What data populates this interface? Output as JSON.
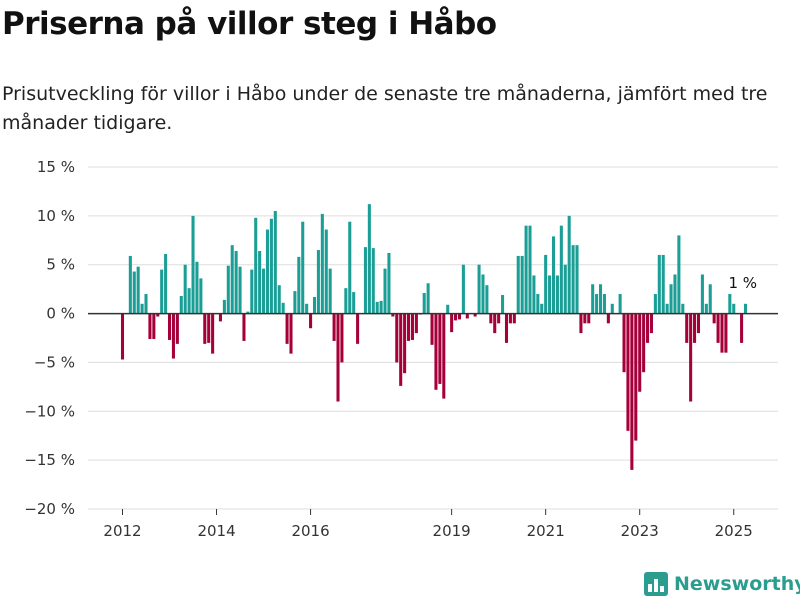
{
  "header": {
    "title": "Priserna på villor steg i Håbo",
    "subtitle": "Prisutveckling för villor i Håbo under de senaste tre månaderna, jämfört med tre månader tidigare."
  },
  "brand": {
    "name": "Newsworthy"
  },
  "colors": {
    "positive": "#1a9e95",
    "negative": "#a50039",
    "grid": "#dddddd",
    "zero_line": "#333333"
  },
  "chart_data": {
    "type": "bar",
    "title": "Priserna på villor steg i Håbo",
    "subtitle": "Prisutveckling för villor i Håbo under de senaste tre månaderna, jämfört med tre månader tidigare.",
    "unit": "%",
    "ylim": [
      -20,
      15
    ],
    "yticks": [
      15,
      10,
      5,
      0,
      -5,
      -10,
      -15,
      -20
    ],
    "ytick_labels": [
      "15 %",
      "10 %",
      "5 %",
      "0 %",
      "−5 %",
      "−10 %",
      "−15 %",
      "−20 %"
    ],
    "xticks": [
      "2012",
      "2014",
      "2016",
      "2019",
      "2021",
      "2023",
      "2025"
    ],
    "grid": true,
    "annotation": "1 %",
    "categories": [
      "2012-01",
      "2012-02",
      "2012-03",
      "2012-04",
      "2012-05",
      "2012-06",
      "2012-07",
      "2012-08",
      "2012-09",
      "2012-10",
      "2012-11",
      "2012-12",
      "2013-01",
      "2013-02",
      "2013-03",
      "2013-04",
      "2013-05",
      "2013-06",
      "2013-07",
      "2013-08",
      "2013-09",
      "2013-10",
      "2013-11",
      "2013-12",
      "2014-01",
      "2014-02",
      "2014-03",
      "2014-04",
      "2014-05",
      "2014-06",
      "2014-07",
      "2014-08",
      "2014-09",
      "2014-10",
      "2014-11",
      "2014-12",
      "2015-01",
      "2015-02",
      "2015-03",
      "2015-04",
      "2015-05",
      "2015-06",
      "2015-07",
      "2015-08",
      "2015-09",
      "2015-10",
      "2015-11",
      "2015-12",
      "2016-01",
      "2016-02",
      "2016-03",
      "2016-04",
      "2016-05",
      "2016-06",
      "2016-07",
      "2016-08",
      "2016-09",
      "2016-10",
      "2016-11",
      "2016-12",
      "2017-01",
      "2017-02",
      "2017-03",
      "2017-04",
      "2017-05",
      "2017-06",
      "2017-07",
      "2017-08",
      "2017-09",
      "2017-10",
      "2017-11",
      "2017-12",
      "2018-01",
      "2018-02",
      "2018-03",
      "2018-04",
      "2018-05",
      "2018-06",
      "2018-07",
      "2018-08",
      "2018-09",
      "2018-10",
      "2018-11",
      "2018-12",
      "2019-01",
      "2019-02",
      "2019-03",
      "2019-04",
      "2019-05",
      "2019-06",
      "2019-07",
      "2019-08",
      "2019-09",
      "2019-10",
      "2019-11",
      "2019-12",
      "2020-01",
      "2020-02",
      "2020-03",
      "2020-04",
      "2020-05",
      "2020-06",
      "2020-07",
      "2020-08",
      "2020-09",
      "2020-10",
      "2020-11",
      "2020-12",
      "2021-01",
      "2021-02",
      "2021-03",
      "2021-04",
      "2021-05",
      "2021-06",
      "2021-07",
      "2021-08",
      "2021-09",
      "2021-10",
      "2021-11",
      "2021-12",
      "2022-01",
      "2022-02",
      "2022-03",
      "2022-04",
      "2022-05",
      "2022-06",
      "2022-07",
      "2022-08",
      "2022-09",
      "2022-10",
      "2022-11",
      "2022-12",
      "2023-01",
      "2023-02",
      "2023-03",
      "2023-04",
      "2023-05",
      "2023-06",
      "2023-07",
      "2023-08",
      "2023-09",
      "2023-10",
      "2023-11",
      "2023-12",
      "2024-01",
      "2024-02",
      "2024-03",
      "2024-04",
      "2024-05",
      "2024-06",
      "2024-07",
      "2024-08",
      "2024-09",
      "2024-10",
      "2024-11",
      "2024-12",
      "2025-01",
      "2025-02",
      "2025-03",
      "2025-04"
    ],
    "values": [
      -4.7,
      0,
      5.9,
      4.3,
      4.8,
      1.0,
      2.0,
      -2.6,
      -2.6,
      -0.3,
      4.5,
      6.1,
      -2.7,
      -4.6,
      -3.1,
      1.8,
      5.0,
      2.6,
      10.0,
      5.3,
      3.6,
      -3.1,
      -3.0,
      -4.1,
      0,
      -0.8,
      1.4,
      4.9,
      7.0,
      6.4,
      4.8,
      -2.8,
      0.2,
      4.5,
      9.8,
      6.4,
      4.6,
      8.6,
      9.7,
      10.5,
      2.9,
      1.1,
      -3.1,
      -4.1,
      2.3,
      5.8,
      9.4,
      1.0,
      -1.5,
      1.7,
      6.5,
      10.2,
      8.6,
      4.6,
      -2.8,
      -9.0,
      -5.0,
      2.6,
      9.4,
      2.2,
      -3.1,
      0,
      6.8,
      11.2,
      6.7,
      1.2,
      1.3,
      4.6,
      6.2,
      -0.3,
      -5.0,
      -7.4,
      -6.1,
      -2.8,
      -2.7,
      -2.0,
      -0.1,
      2.1,
      3.1,
      -3.2,
      -7.8,
      -7.2,
      -8.7,
      0.9,
      -1.9,
      -0.7,
      -0.6,
      5.0,
      -0.5,
      0,
      -0.3,
      5.0,
      4.0,
      2.9,
      -1.0,
      -2.0,
      -1.0,
      1.9,
      -3.0,
      -1.0,
      -1.0,
      5.9,
      5.9,
      9.0,
      9.0,
      3.9,
      2.0,
      1.0,
      6.0,
      3.9,
      7.9,
      3.9,
      9.0,
      5.0,
      10.0,
      7.0,
      7.0,
      -2.0,
      -1.0,
      -1.0,
      3.0,
      2.0,
      3.0,
      2.0,
      -1.0,
      1.0,
      0,
      2.0,
      -6.0,
      -12.0,
      -16.0,
      -13.0,
      -8.0,
      -6.0,
      -3.0,
      -2.0,
      2.0,
      6.0,
      6.0,
      1.0,
      3.0,
      4.0,
      8.0,
      1.0,
      -3.0,
      -9.0,
      -3.0,
      -2.0,
      4.0,
      1.0,
      3.0,
      -1.0,
      -3.0,
      -4.0,
      -4.0,
      2.0,
      1.0,
      0,
      -3.0,
      1.0
    ]
  }
}
